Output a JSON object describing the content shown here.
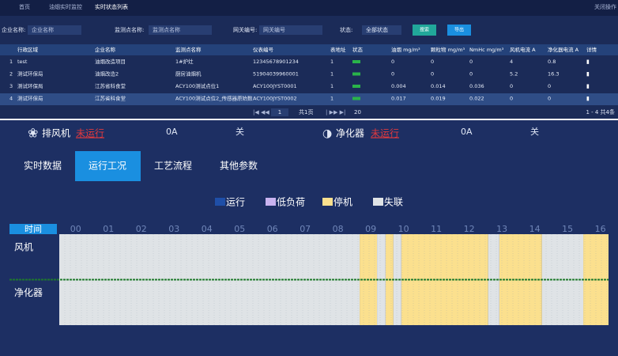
{
  "header": {
    "tabs": [
      "首页",
      "油烟实时监控",
      "实时状态列表"
    ],
    "right": "关闭操作"
  },
  "filters": {
    "items": [
      {
        "label": "企业名称:",
        "placeholder": "企业名称"
      },
      {
        "label": "监测点名称:",
        "placeholder": "监测点名称"
      },
      {
        "label": "网关编号:",
        "placeholder": "网关编号"
      }
    ],
    "status_label": "状态:",
    "status_value": "全部状态",
    "search": "搜索",
    "export": "导出"
  },
  "table": {
    "headers": [
      "行政区域",
      "企业名称",
      "监测点名称",
      "仪表编号",
      "表地址",
      "状态",
      "油烟 mg/m³",
      "颗粒物 mg/m³",
      "NmHc mg/m³",
      "风机电流 A",
      "净化器电流 A",
      "详情"
    ],
    "rows": [
      [
        "1",
        "test",
        "油烟改造项目",
        "1#炉灶",
        "12345678901234",
        "1",
        "",
        "0",
        "0",
        "0",
        "4",
        "0.8"
      ],
      [
        "2",
        "测试环保局",
        "油烟改造2",
        "厨房油烟机",
        "51904039960001",
        "1",
        "",
        "0",
        "0",
        "0",
        "5.2",
        "16.3"
      ],
      [
        "3",
        "测试环保局",
        "江苏省科食堂",
        "ACY100测试点位1",
        "ACY100JYST0001",
        "1",
        "",
        "0.004",
        "0.014",
        "0.036",
        "0",
        "0"
      ],
      [
        "4",
        "测试环保局",
        "江苏省科食堂",
        "ACY100测试点位2_传感器原始数",
        "ACY100JYST0002",
        "1",
        "",
        "0.017",
        "0.019",
        "0.022",
        "0",
        "0"
      ]
    ]
  },
  "pagination": {
    "page": "1",
    "pages": "共1页",
    "size": "20",
    "summary": "1 - 4  共4条"
  },
  "status": [
    {
      "name": "排风机",
      "state": "未运行",
      "current": "0A",
      "switch": "关"
    },
    {
      "name": "净化器",
      "state": "未运行",
      "current": "0A",
      "switch": "关"
    }
  ],
  "detail_tabs": [
    "实时数据",
    "运行工况",
    "工艺流程",
    "其他参数"
  ],
  "chart_data": {
    "type": "timeline",
    "x_label": "时间",
    "categories": [
      "00",
      "01",
      "02",
      "03",
      "04",
      "05",
      "06",
      "07",
      "08",
      "09",
      "10",
      "11",
      "12",
      "13",
      "14",
      "15",
      "16"
    ],
    "rows": [
      "风机",
      "净化器"
    ],
    "xlim": [
      0,
      16.75
    ],
    "series": [
      {
        "name": "运行",
        "color": "#1f4fa8",
        "values": [
          [],
          []
        ]
      },
      {
        "name": "低负荷",
        "color": "#c9b3f0",
        "values": [
          [],
          []
        ]
      },
      {
        "name": "停机",
        "color": "#fbe08e",
        "values": [
          [
            [
              9.16,
              9.69
            ],
            [
              9.95,
              10.19
            ],
            [
              10.43,
              13.08
            ],
            [
              13.42,
              14.72
            ],
            [
              15.98,
              16.75
            ]
          ],
          [
            [
              9.16,
              9.69
            ],
            [
              9.95,
              10.19
            ],
            [
              10.43,
              13.08
            ],
            [
              13.42,
              14.72
            ],
            [
              15.98,
              16.75
            ]
          ]
        ]
      },
      {
        "name": "失联",
        "color": "#dfe3e6",
        "values": [
          [
            [
              0,
              9.16
            ],
            [
              9.69,
              9.95
            ],
            [
              10.19,
              10.43
            ],
            [
              13.08,
              13.42
            ],
            [
              14.72,
              15.98
            ]
          ],
          [
            [
              0,
              9.16
            ],
            [
              9.69,
              9.95
            ],
            [
              10.19,
              10.43
            ],
            [
              13.08,
              13.42
            ],
            [
              14.72,
              15.98
            ]
          ]
        ]
      }
    ]
  }
}
